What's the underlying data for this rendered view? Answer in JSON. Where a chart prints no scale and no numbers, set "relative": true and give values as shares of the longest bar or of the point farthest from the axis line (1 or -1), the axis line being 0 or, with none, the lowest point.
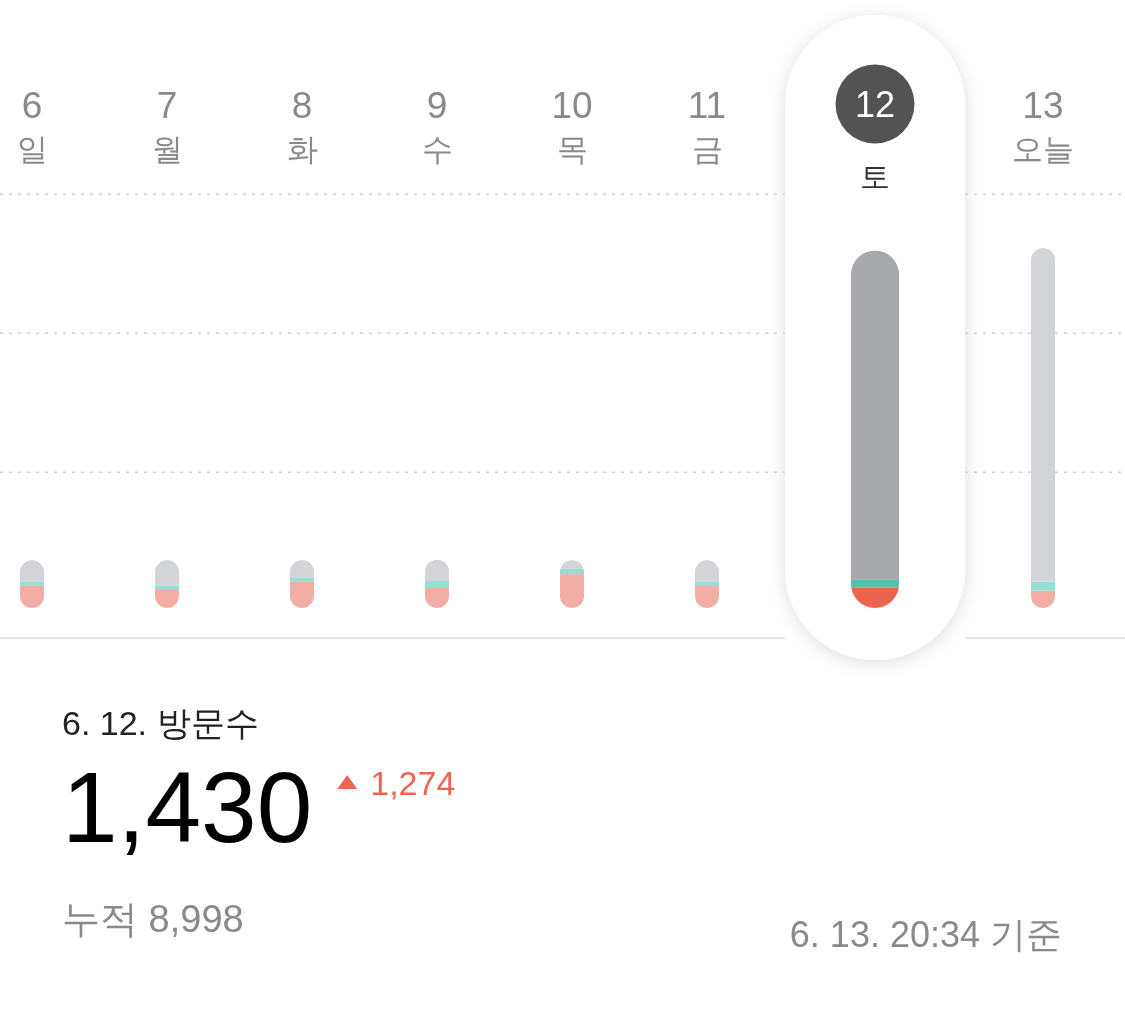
{
  "chart_data": {
    "type": "bar",
    "stacked": true,
    "relative": true,
    "categories": [
      "6\n일",
      "7\n월",
      "8\n화",
      "9\n수",
      "10\n목",
      "11\n금",
      "12\n토",
      "13\n오늘"
    ],
    "series": [
      {
        "colors": [
          "#f2aea5",
          "#f2aea5",
          "#f2aea5",
          "#f2aea5",
          "#f2aea5",
          "#f2aea5",
          "#ec6350",
          "#f2aea5"
        ],
        "values": [
          0.063,
          0.05,
          0.074,
          0.058,
          0.094,
          0.061,
          0.056,
          0.048
        ]
      },
      {
        "colors": [
          "#96dfd3",
          "#96dfd3",
          "#96dfd3",
          "#96dfd3",
          "#96dfd3",
          "#96dfd3",
          "#55c1a8",
          "#96dfd3"
        ],
        "values": [
          0.011,
          0.013,
          0.011,
          0.017,
          0.016,
          0.013,
          0.022,
          0.025
        ]
      },
      {
        "colors": [
          "#d3d4d8",
          "#d3d4d8",
          "#d3d4d8",
          "#d3d4d8",
          "#d3d4d8",
          "#d3d4d8",
          "#a7a9ad",
          "#d3d4d8"
        ],
        "values": [
          0.059,
          0.07,
          0.048,
          0.059,
          0.023,
          0.059,
          0.915,
          0.927
        ]
      }
    ],
    "ref_lines": [
      {
        "axis": "y",
        "value": 0.377,
        "line_style": "dotted",
        "color": "#d2d2d2"
      },
      {
        "axis": "y",
        "value": 0.763,
        "line_style": "dotted",
        "color": "#d2d2d2"
      },
      {
        "axis": "y",
        "value": 1.149,
        "line_style": "dotted",
        "color": "#d2d2d2"
      }
    ],
    "annotations": [
      "6. 12. 방문수",
      "1,430",
      "1,274",
      "누적 8,998",
      "6. 13. 20:34 기준"
    ]
  }
}
